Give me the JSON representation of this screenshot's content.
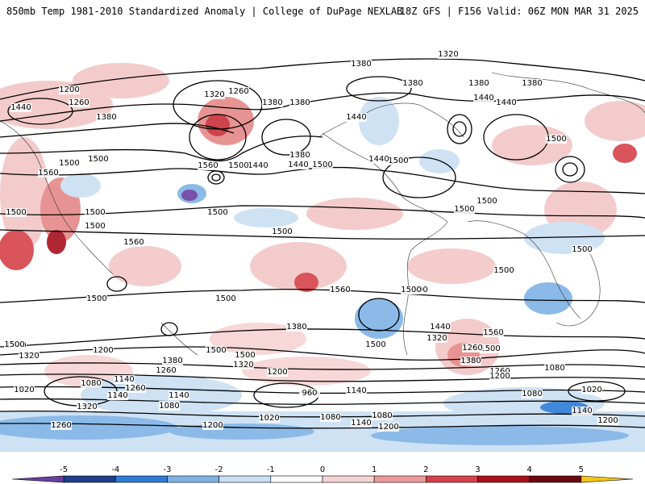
{
  "header": {
    "title_left": "850mb Temp 1981-2010 Standardized Anomaly | College of DuPage NEXLAB",
    "title_right": "18Z GFS | F156 Valid: 06Z MON MAR 31 2025"
  },
  "colorbar": {
    "ticks": [
      "-5",
      "-4",
      "-3",
      "-2",
      "-1",
      "0",
      "1",
      "2",
      "3",
      "4",
      "5"
    ],
    "colors": [
      "#6a3fa0",
      "#1f3f8a",
      "#2e7cd6",
      "#7fb3e6",
      "#c9dff3",
      "#ffffff",
      "#f7d3d3",
      "#ec9a9a",
      "#d6424a",
      "#a8101c",
      "#6b0710",
      "#f5c518"
    ]
  },
  "map": {
    "contour_labels": [
      "1320",
      "1380",
      "1380",
      "1380",
      "1380",
      "1200",
      "1260",
      "1320",
      "1260",
      "1380",
      "1440",
      "1380",
      "1440",
      "1440",
      "1380",
      "1440",
      "1500",
      "1560",
      "1500",
      "1500",
      "1440",
      "1560",
      "1500",
      "1380",
      "1440",
      "1500",
      "1500",
      "1440",
      "1500",
      "1500",
      "1500",
      "1500",
      "1500",
      "1500",
      "1500",
      "1560",
      "1500",
      "1500",
      "1500",
      "1440",
      "1560",
      "1500",
      "1380",
      "1500",
      "1500",
      "1440",
      "1500",
      "1320",
      "1500",
      "1320",
      "1200",
      "1380",
      "1260",
      "1320",
      "1200",
      "1260",
      "1380",
      "1260",
      "1200",
      "1140",
      "1080",
      "1020",
      "1320",
      "1140",
      "1080",
      "1200",
      "1260",
      "1140",
      "1080",
      "960",
      "1140",
      "1080",
      "1020",
      "1080",
      "1140",
      "1200",
      "1080",
      "1020",
      "1260",
      "1200",
      "1200",
      "1080",
      "1140",
      "1200",
      "1500",
      "1560",
      "1380",
      "1500",
      "1500"
    ]
  }
}
